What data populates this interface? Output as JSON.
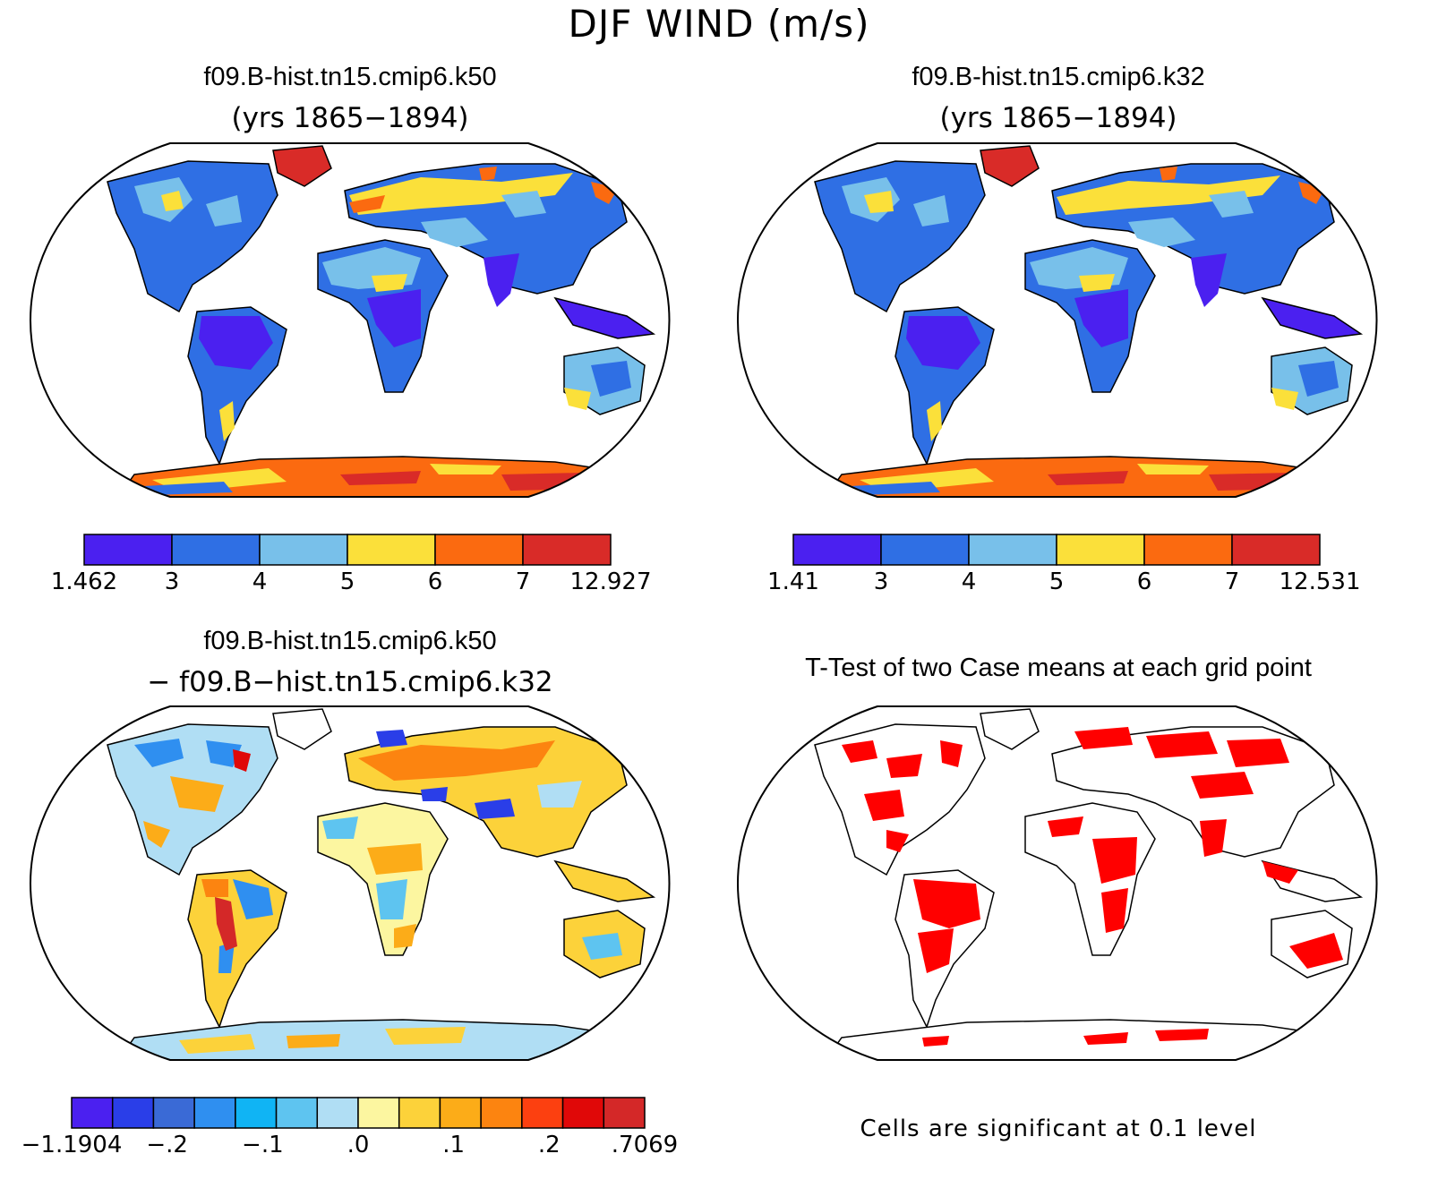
{
  "figure_title": "DJF WIND (m/s)",
  "panels": [
    {
      "id": "k50",
      "title": "f09.B-hist.tn15.cmip6.k50",
      "subtitle": "(yrs 1865−1894)",
      "colorbar": {
        "colors": [
          "#4b20f0",
          "#2f6fe4",
          "#78c0ea",
          "#fbe03a",
          "#fb6a10",
          "#d92b28"
        ],
        "labels": [
          "1.462",
          "3",
          "4",
          "5",
          "6",
          "7",
          "12.927"
        ]
      }
    },
    {
      "id": "k32",
      "title": "f09.B-hist.tn15.cmip6.k32",
      "subtitle": "(yrs 1865−1894)",
      "colorbar": {
        "colors": [
          "#4b20f0",
          "#2f6fe4",
          "#78c0ea",
          "#fbe03a",
          "#fb6a10",
          "#d92b28"
        ],
        "labels": [
          "1.41",
          "3",
          "4",
          "5",
          "6",
          "7",
          "12.531"
        ]
      }
    },
    {
      "id": "diff",
      "title": "f09.B-hist.tn15.cmip6.k50",
      "subtitle": "− f09.B−hist.tn15.cmip6.k32",
      "colorbar": {
        "colors": [
          "#4b20f0",
          "#2a3ee8",
          "#3a6ad6",
          "#2f8ff0",
          "#10b4f4",
          "#5ec4f0",
          "#b0def4",
          "#fcf6a0",
          "#fcd23a",
          "#fcac18",
          "#fc8410",
          "#fc4010",
          "#e00808",
          "#d42828"
        ],
        "labels": [
          "−1.1904",
          "−.2",
          "−.1",
          ".0",
          ".1",
          ".2",
          ".7069"
        ]
      }
    },
    {
      "id": "ttest",
      "title": "T-Test of two Case means at each grid point",
      "note": "Cells are significant at 0.1 level",
      "significance_color": "#ff0000"
    }
  ]
}
